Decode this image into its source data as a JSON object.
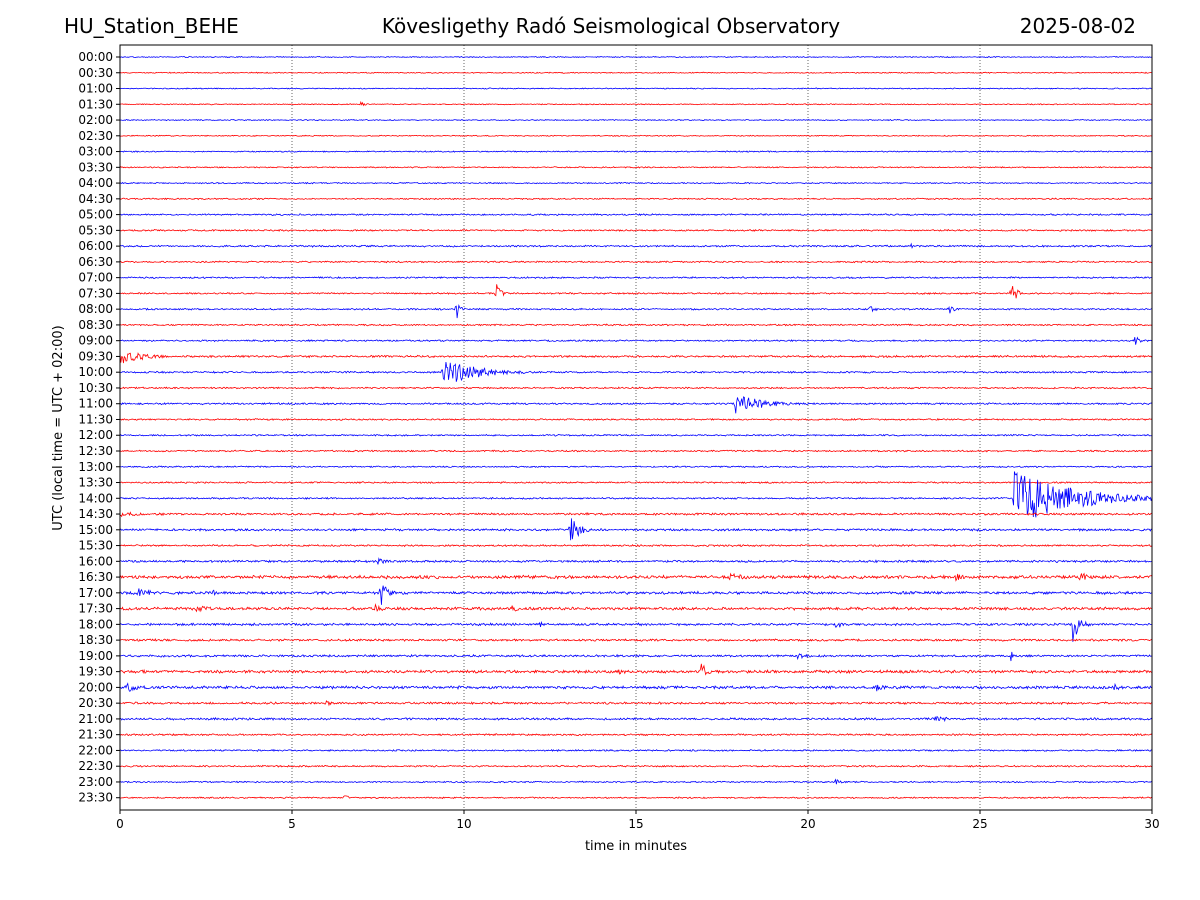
{
  "header": {
    "station": "HU_Station_BEHE",
    "title": "Kövesligethy Radó Seismological Observatory",
    "date": "2025-08-02"
  },
  "chart_data": {
    "type": "line",
    "xlabel": "time in minutes",
    "ylabel": "UTC (local time = UTC + 02:00)",
    "xlim": [
      0,
      30
    ],
    "xticks": [
      0,
      5,
      10,
      15,
      20,
      25,
      30
    ],
    "grid": "vertical dotted lines at 5-minute ticks",
    "colors": [
      "#0000ff",
      "#ff0000"
    ],
    "rows": [
      "00:00",
      "00:30",
      "01:00",
      "01:30",
      "02:00",
      "02:30",
      "03:00",
      "03:30",
      "04:00",
      "04:30",
      "05:00",
      "05:30",
      "06:00",
      "06:30",
      "07:00",
      "07:30",
      "08:00",
      "08:30",
      "09:00",
      "09:30",
      "10:00",
      "10:30",
      "11:00",
      "11:30",
      "12:00",
      "12:30",
      "13:00",
      "13:30",
      "14:00",
      "14:30",
      "15:00",
      "15:30",
      "16:00",
      "16:30",
      "17:00",
      "17:30",
      "18:00",
      "18:30",
      "19:00",
      "19:30",
      "20:00",
      "20:30",
      "21:00",
      "21:30",
      "22:00",
      "22:30",
      "23:00",
      "23:30"
    ],
    "noise": [
      0.6,
      0.6,
      0.6,
      0.6,
      0.6,
      0.6,
      0.7,
      0.7,
      0.7,
      0.8,
      0.9,
      0.9,
      1.0,
      0.9,
      0.9,
      0.9,
      0.9,
      0.9,
      0.9,
      1.1,
      1.0,
      0.9,
      1.0,
      0.9,
      0.9,
      0.9,
      0.8,
      0.9,
      0.9,
      1.2,
      1.2,
      1.0,
      1.2,
      1.8,
      1.6,
      1.6,
      1.3,
      1.2,
      1.2,
      1.6,
      1.6,
      1.2,
      1.2,
      1.0,
      0.9,
      0.9,
      0.8,
      0.8
    ],
    "events": [
      {
        "row": "01:30",
        "t": 7.0,
        "amp": 3,
        "dur": 0.4
      },
      {
        "row": "06:00",
        "t": 23.0,
        "amp": 3,
        "dur": 0.6
      },
      {
        "row": "07:30",
        "t": 10.95,
        "amp": 10,
        "dur": 0.4
      },
      {
        "row": "07:30",
        "t": 25.9,
        "amp": 13,
        "dur": 0.5
      },
      {
        "row": "08:00",
        "t": 9.8,
        "amp": 13,
        "dur": 0.3
      },
      {
        "row": "08:00",
        "t": 21.8,
        "amp": 4,
        "dur": 0.5
      },
      {
        "row": "08:00",
        "t": 24.1,
        "amp": 6,
        "dur": 0.5
      },
      {
        "row": "09:00",
        "t": 29.5,
        "amp": 5,
        "dur": 0.6
      },
      {
        "row": "09:30",
        "t": 0.0,
        "amp": 8,
        "dur": 2.0
      },
      {
        "row": "10:00",
        "t": 9.4,
        "amp": 14,
        "dur": 3.0
      },
      {
        "row": "11:00",
        "t": 17.9,
        "amp": 10,
        "dur": 2.5
      },
      {
        "row": "14:00",
        "t": 26.0,
        "amp": 28,
        "dur": 5.0
      },
      {
        "row": "14:30",
        "t": 0.0,
        "amp": 3,
        "dur": 2.0
      },
      {
        "row": "15:00",
        "t": 13.1,
        "amp": 14,
        "dur": 0.8
      },
      {
        "row": "16:00",
        "t": 7.5,
        "amp": 4,
        "dur": 0.8
      },
      {
        "row": "16:30",
        "t": 17.7,
        "amp": 4,
        "dur": 2.0
      },
      {
        "row": "16:30",
        "t": 24.3,
        "amp": 5,
        "dur": 0.6
      },
      {
        "row": "16:30",
        "t": 26.5,
        "amp": 4,
        "dur": 0.6
      },
      {
        "row": "16:30",
        "t": 27.9,
        "amp": 7,
        "dur": 0.6
      },
      {
        "row": "17:00",
        "t": 0.5,
        "amp": 5,
        "dur": 1.5
      },
      {
        "row": "17:00",
        "t": 2.7,
        "amp": 3,
        "dur": 0.5
      },
      {
        "row": "17:00",
        "t": 7.6,
        "amp": 16,
        "dur": 0.5
      },
      {
        "row": "17:30",
        "t": 2.2,
        "amp": 4,
        "dur": 1.5
      },
      {
        "row": "17:30",
        "t": 7.4,
        "amp": 7,
        "dur": 0.6
      },
      {
        "row": "17:30",
        "t": 11.4,
        "amp": 4,
        "dur": 0.6
      },
      {
        "row": "18:00",
        "t": 12.2,
        "amp": 3,
        "dur": 0.6
      },
      {
        "row": "18:00",
        "t": 20.85,
        "amp": 11,
        "dur": 0.2
      },
      {
        "row": "18:00",
        "t": 27.7,
        "amp": 18,
        "dur": 0.6
      },
      {
        "row": "19:00",
        "t": 19.7,
        "amp": 3,
        "dur": 1.0
      },
      {
        "row": "19:00",
        "t": 25.9,
        "amp": 6,
        "dur": 0.2
      },
      {
        "row": "19:30",
        "t": 16.9,
        "amp": 11,
        "dur": 0.4
      },
      {
        "row": "19:30",
        "t": 14.5,
        "amp": 4,
        "dur": 0.6
      },
      {
        "row": "20:00",
        "t": 0.2,
        "amp": 5,
        "dur": 1.0
      },
      {
        "row": "20:00",
        "t": 22.0,
        "amp": 6,
        "dur": 0.5
      },
      {
        "row": "20:00",
        "t": 28.9,
        "amp": 4,
        "dur": 0.6
      },
      {
        "row": "20:30",
        "t": 6.0,
        "amp": 5,
        "dur": 0.3
      },
      {
        "row": "21:00",
        "t": 23.7,
        "amp": 3,
        "dur": 2.0
      },
      {
        "row": "23:00",
        "t": 20.8,
        "amp": 3,
        "dur": 0.5
      },
      {
        "row": "23:30",
        "t": 6.5,
        "amp": 3,
        "dur": 0.6
      }
    ]
  }
}
